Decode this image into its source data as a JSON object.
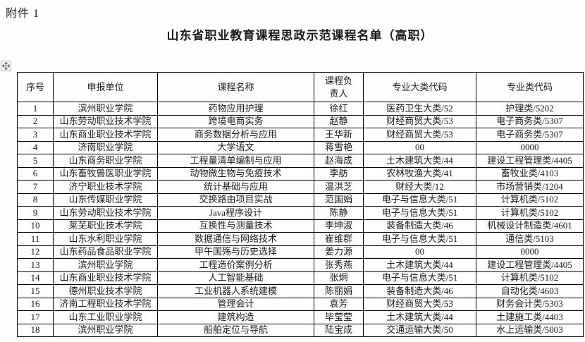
{
  "attachment_label": "附件 1",
  "title": "山东省职业教育课程思政示范课程名单（高职）",
  "icons": {
    "move_handle": "table-move-handle-icon"
  },
  "table": {
    "columns": [
      "序号",
      "申报单位",
      "课程名称",
      "课程负责人",
      "专业大类代码",
      "专业类代码"
    ],
    "rows": [
      [
        "1",
        "滨州职业学院",
        "药物应用护理",
        "徐红",
        "医药卫生大类/52",
        "护理类/5202"
      ],
      [
        "2",
        "山东劳动职业技术学院",
        "跨境电商实务",
        "赵静",
        "财经商贸大类/53",
        "电子商务类/5307"
      ],
      [
        "3",
        "山东商业职业技术学院",
        "商务数据分析与应用",
        "王华新",
        "财经商贸大类/53",
        "电子商务类/5307"
      ],
      [
        "4",
        "济南职业学院",
        "大学语文",
        "蒋雪艳",
        "00",
        "0000"
      ],
      [
        "5",
        "山东商务职业学院",
        "工程量清单编制与应用",
        "赵海成",
        "土木建筑大类/44",
        "建设工程管理类/4405"
      ],
      [
        "6",
        "山东畜牧兽医职业学院",
        "动物微生物与免疫技术",
        "李舫",
        "农林牧渔大类/41",
        "畜牧业类/4103"
      ],
      [
        "7",
        "济宁职业技术学院",
        "统计基础与应用",
        "温洪芝",
        "财经大类/12",
        "市场营销类/1204"
      ],
      [
        "8",
        "山东传媒职业学院",
        "交换路由项目实战",
        "范国娟",
        "电子与信息大类/51",
        "计算机类/5102"
      ],
      [
        "9",
        "山东劳动职业技术学院",
        "Java程序设计",
        "陈静",
        "电子与信息大类/51",
        "计算机类/5102"
      ],
      [
        "10",
        "莱芜职业技术学院",
        "互换性与测量技术",
        "李坤淑",
        "装备制造大类/46",
        "机械设计制造类/4601"
      ],
      [
        "11",
        "山东水利职业学院",
        "数据通信与网络技术",
        "崔维群",
        "电子与信息大类/51",
        "通信类/5103"
      ],
      [
        "12",
        "山东药品食品职业学院",
        "甲午国殇与历史选择",
        "姜力源",
        "00",
        "0000"
      ],
      [
        "13",
        "滨州职业学院",
        "工程造价案例分析",
        "张秀燕",
        "土木建筑大类/44",
        "建设工程管理类/4405"
      ],
      [
        "14",
        "山东商业职业技术学院",
        "人工智能基础",
        "张炯",
        "电子与信息大类/51",
        "计算机类/5102"
      ],
      [
        "15",
        "德州职业技术学院",
        "工业机器人系统建模",
        "陈丽娟",
        "装备制造大类/46",
        "自动化类/4603"
      ],
      [
        "16",
        "济南工程职业技术学院",
        "管理会计",
        "袁芳",
        "财经商贸大类/53",
        "财务会计类/5303"
      ],
      [
        "17",
        "山东工业职业学院",
        "建筑构造",
        "毕莹莹",
        "土木建筑大类/44",
        "土建施工类/4403"
      ],
      [
        "18",
        "滨州职业学院",
        "船舶定位与导航",
        "陆宝成",
        "交通运输大类/50",
        "水上运输类/5003"
      ]
    ]
  }
}
